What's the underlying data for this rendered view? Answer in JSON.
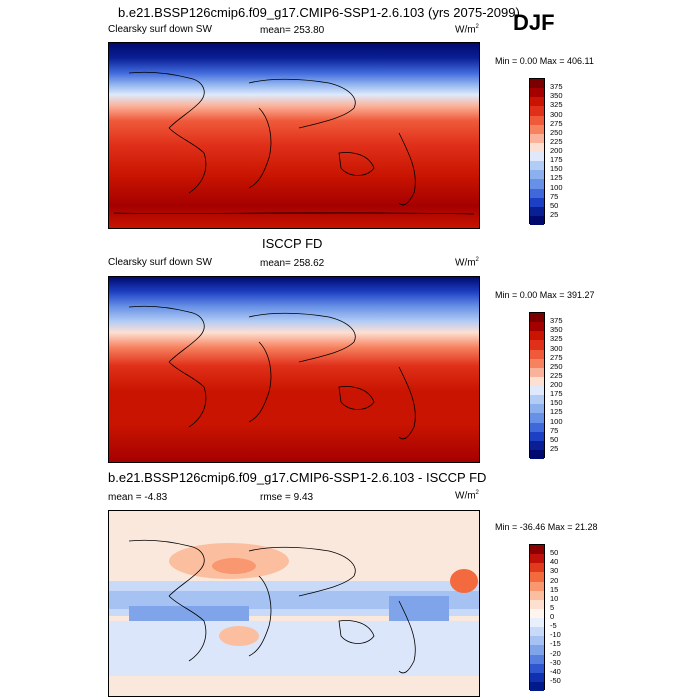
{
  "header": {
    "run_title": "b.e21.BSSP126cmip6.f09_g17.CMIP6-SSP1-2.6.103 (yrs 2075-2099)",
    "season": "DJF"
  },
  "panels": [
    {
      "variable": "Clearsky surf down SW",
      "mean_text": "mean= 253.80",
      "units": "W/m",
      "units_sup": "2",
      "minmax": "Min =   0.00 Max = 406.11",
      "colorbar_labels": [
        "375",
        "350",
        "325",
        "300",
        "275",
        "250",
        "225",
        "200",
        "175",
        "150",
        "125",
        "100",
        "75",
        "50",
        "25"
      ],
      "colors": [
        "#7a0000",
        "#a50000",
        "#c81400",
        "#e0301a",
        "#ef5a3a",
        "#f7825f",
        "#fbb29a",
        "#fde0d2",
        "#dfe9fb",
        "#b3ccf5",
        "#8cb0ee",
        "#6791e6",
        "#3f68db",
        "#1d3fc4",
        "#0a1f94",
        "#000a6e"
      ]
    },
    {
      "title": "ISCCP FD",
      "variable": "Clearsky surf down SW",
      "mean_text": "mean= 258.62",
      "units": "W/m",
      "units_sup": "2",
      "minmax": "Min =   0.00 Max = 391.27",
      "colorbar_labels": [
        "375",
        "350",
        "325",
        "300",
        "275",
        "250",
        "225",
        "200",
        "175",
        "150",
        "125",
        "100",
        "75",
        "50",
        "25"
      ],
      "colors": [
        "#7a0000",
        "#a50000",
        "#c81400",
        "#e0301a",
        "#ef5a3a",
        "#f7825f",
        "#fbb29a",
        "#fde0d2",
        "#dfe9fb",
        "#b3ccf5",
        "#8cb0ee",
        "#6791e6",
        "#3f68db",
        "#1d3fc4",
        "#0a1f94",
        "#000a6e"
      ]
    },
    {
      "title": "b.e21.BSSP126cmip6.f09_g17.CMIP6-SSP1-2.6.103 - ISCCP FD",
      "mean_text": "mean =  -4.83",
      "rmse_text": "rmse =  9.43",
      "units": "W/m",
      "units_sup": "2",
      "minmax": "Min = -36.46 Max =  21.28",
      "colorbar_labels": [
        "50",
        "40",
        "30",
        "20",
        "15",
        "10",
        "5",
        "0",
        "-5",
        "-10",
        "-15",
        "-20",
        "-30",
        "-40",
        "-50"
      ],
      "colors": [
        "#8b0000",
        "#c0100a",
        "#e23a1c",
        "#f26a3d",
        "#f89770",
        "#fbbf9f",
        "#fde0cf",
        "#fff4ee",
        "#e8f0fd",
        "#c8daf8",
        "#a6c2f2",
        "#7fa4ea",
        "#577fe0",
        "#2f55cf",
        "#1030b0",
        "#001a8c"
      ]
    }
  ]
}
